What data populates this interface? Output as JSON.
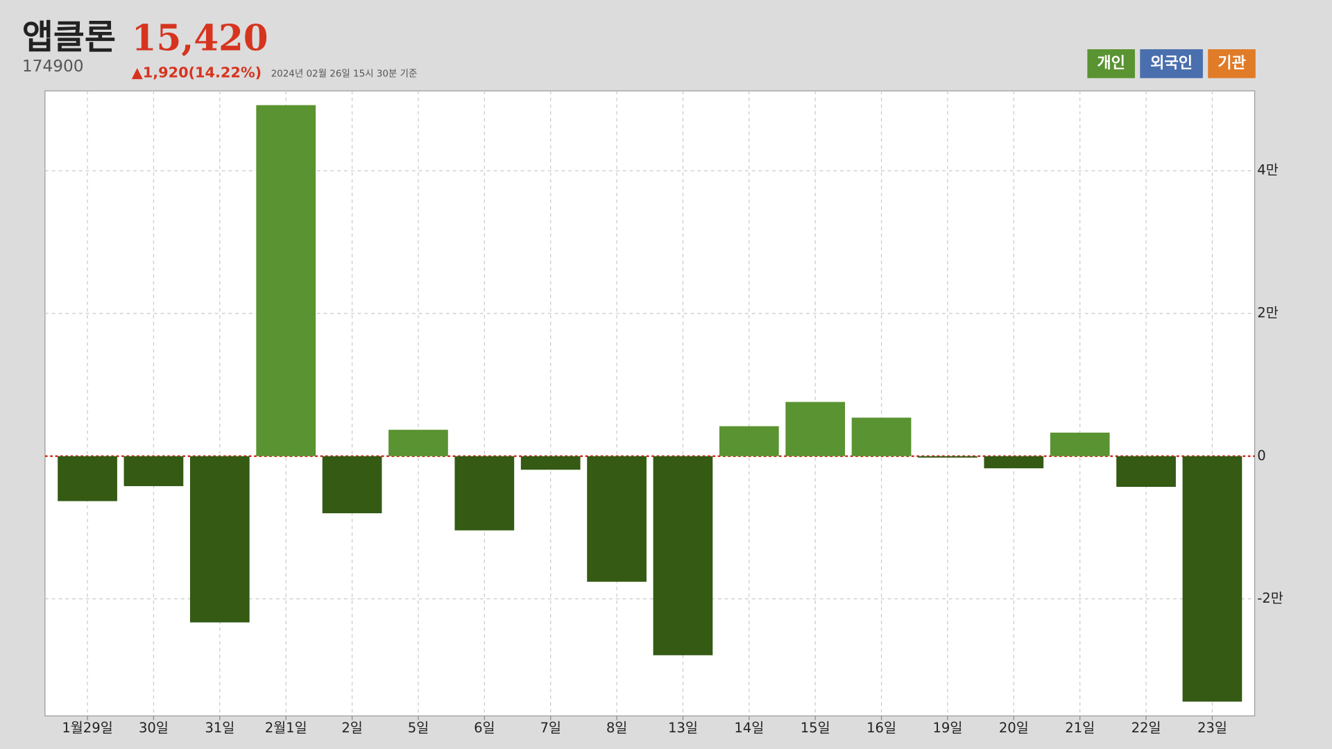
{
  "header": {
    "stock_name": "앱클론",
    "price": "15,420",
    "code": "174900",
    "change": "▲1,920(14.22%)",
    "timestamp": "2024년 02월 26일 15시 30분 기준"
  },
  "chart_data": {
    "type": "bar",
    "categories": [
      "1월29일",
      "30일",
      "31일",
      "2월1일",
      "2일",
      "5일",
      "6일",
      "7일",
      "8일",
      "13일",
      "14일",
      "15일",
      "16일",
      "19일",
      "20일",
      "21일",
      "22일",
      "23일"
    ],
    "series": [
      {
        "name": "개인",
        "color": "#5a9331",
        "negative_color": "#345a14",
        "values": [
          -6300,
          -4200,
          -23300,
          49200,
          -8000,
          3700,
          -10400,
          -1900,
          -17600,
          -27900,
          4200,
          7600,
          5400,
          -200,
          -1700,
          3300,
          -4300,
          -34400
        ]
      }
    ],
    "other_investors": [
      {
        "name": "외국인",
        "color": "#4a6fae"
      },
      {
        "name": "기관",
        "color": "#e07b27"
      }
    ],
    "ylim": [
      -36400,
      51200
    ],
    "yticks": [
      {
        "value": -20000,
        "label": "-2만"
      },
      0,
      {
        "value": 20000,
        "label": "2만"
      },
      {
        "value": 40000,
        "label": "4만"
      }
    ],
    "grid": true,
    "zero_line_color": "#d62b1e"
  }
}
